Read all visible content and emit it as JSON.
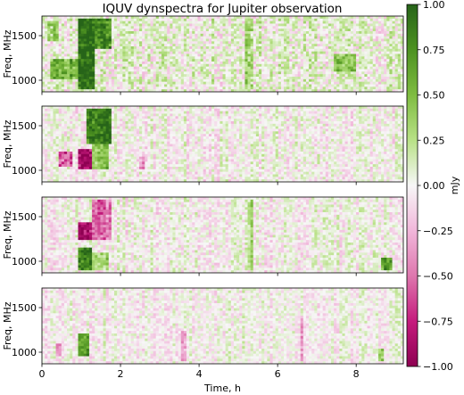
{
  "figure": {
    "title": "IQUV dynspectra for Jupiter observation"
  },
  "chart_data": {
    "type": "heatmap",
    "title": "IQUV dynspectra for Jupiter observation",
    "xlabel": "Time, h",
    "ylabel": "Freq, MHz",
    "xlim": [
      0,
      9.2
    ],
    "ylim": [
      870,
      1720
    ],
    "x_ticks": [
      0,
      2,
      4,
      6,
      8
    ],
    "y_ticks": [
      1000,
      1500
    ],
    "colorbar": {
      "label": "mJy",
      "min": -1.0,
      "max": 1.0,
      "ticks": [
        "1.00",
        "0.75",
        "0.50",
        "0.25",
        "0.00",
        "−0.25",
        "−0.50",
        "−0.75",
        "−1.00"
      ],
      "colormap": "PiYG",
      "low_color": "#8e0152",
      "mid_color": "#f7f7f7",
      "high_color": "#276419"
    },
    "panels": [
      {
        "grid_rows": 30,
        "grid_cols": 130,
        "seed": 11,
        "noise": 0.22,
        "bias": 0.06,
        "features": [
          {
            "t0": 0.95,
            "t1": 1.35,
            "f0": 900,
            "f1": 1700,
            "value": 1.0
          },
          {
            "t0": 1.35,
            "t1": 1.75,
            "f0": 1350,
            "f1": 1700,
            "value": 0.8
          },
          {
            "t0": 0.2,
            "t1": 0.9,
            "f0": 1000,
            "f1": 1250,
            "value": 0.55
          },
          {
            "t0": 0.15,
            "t1": 0.45,
            "f0": 1450,
            "f1": 1650,
            "value": 0.35
          },
          {
            "t0": 7.4,
            "t1": 8.0,
            "f0": 1100,
            "f1": 1300,
            "value": 0.4
          },
          {
            "t0": 5.2,
            "t1": 5.35,
            "f0": 900,
            "f1": 1700,
            "value": 0.3
          }
        ]
      },
      {
        "grid_rows": 30,
        "grid_cols": 130,
        "seed": 23,
        "noise": 0.16,
        "bias": 0.0,
        "features": [
          {
            "t0": 0.95,
            "t1": 1.3,
            "f0": 1000,
            "f1": 1250,
            "value": -1.0
          },
          {
            "t0": 0.45,
            "t1": 0.75,
            "f0": 1050,
            "f1": 1200,
            "value": -0.6
          },
          {
            "t0": 1.1,
            "t1": 1.75,
            "f0": 1300,
            "f1": 1700,
            "value": 0.95
          },
          {
            "t0": 1.3,
            "t1": 1.7,
            "f0": 1000,
            "f1": 1300,
            "value": 0.5
          },
          {
            "t0": 2.45,
            "t1": 2.6,
            "f0": 1000,
            "f1": 1150,
            "value": -0.45
          }
        ]
      },
      {
        "grid_rows": 30,
        "grid_cols": 130,
        "seed": 37,
        "noise": 0.16,
        "bias": 0.0,
        "features": [
          {
            "t0": 0.95,
            "t1": 1.3,
            "f0": 1250,
            "f1": 1450,
            "value": -1.0
          },
          {
            "t0": 1.25,
            "t1": 1.75,
            "f0": 1250,
            "f1": 1700,
            "value": -0.55
          },
          {
            "t0": 0.95,
            "t1": 1.3,
            "f0": 900,
            "f1": 1150,
            "value": 0.95
          },
          {
            "t0": 1.3,
            "t1": 1.7,
            "f0": 900,
            "f1": 1100,
            "value": 0.35
          },
          {
            "t0": 8.6,
            "t1": 8.9,
            "f0": 900,
            "f1": 1050,
            "value": 0.7
          },
          {
            "t0": 5.25,
            "t1": 5.4,
            "f0": 900,
            "f1": 1700,
            "value": 0.3
          }
        ]
      },
      {
        "grid_rows": 30,
        "grid_cols": 130,
        "seed": 53,
        "noise": 0.14,
        "bias": 0.0,
        "features": [
          {
            "t0": 0.95,
            "t1": 1.2,
            "f0": 950,
            "f1": 1200,
            "value": 0.75
          },
          {
            "t0": 0.35,
            "t1": 0.5,
            "f0": 950,
            "f1": 1100,
            "value": -0.35
          },
          {
            "t0": 6.55,
            "t1": 6.65,
            "f0": 900,
            "f1": 1400,
            "value": -0.45
          },
          {
            "t0": 3.55,
            "t1": 3.65,
            "f0": 900,
            "f1": 1250,
            "value": -0.4
          },
          {
            "t0": 8.55,
            "t1": 8.7,
            "f0": 900,
            "f1": 1050,
            "value": 0.5
          }
        ]
      }
    ]
  }
}
